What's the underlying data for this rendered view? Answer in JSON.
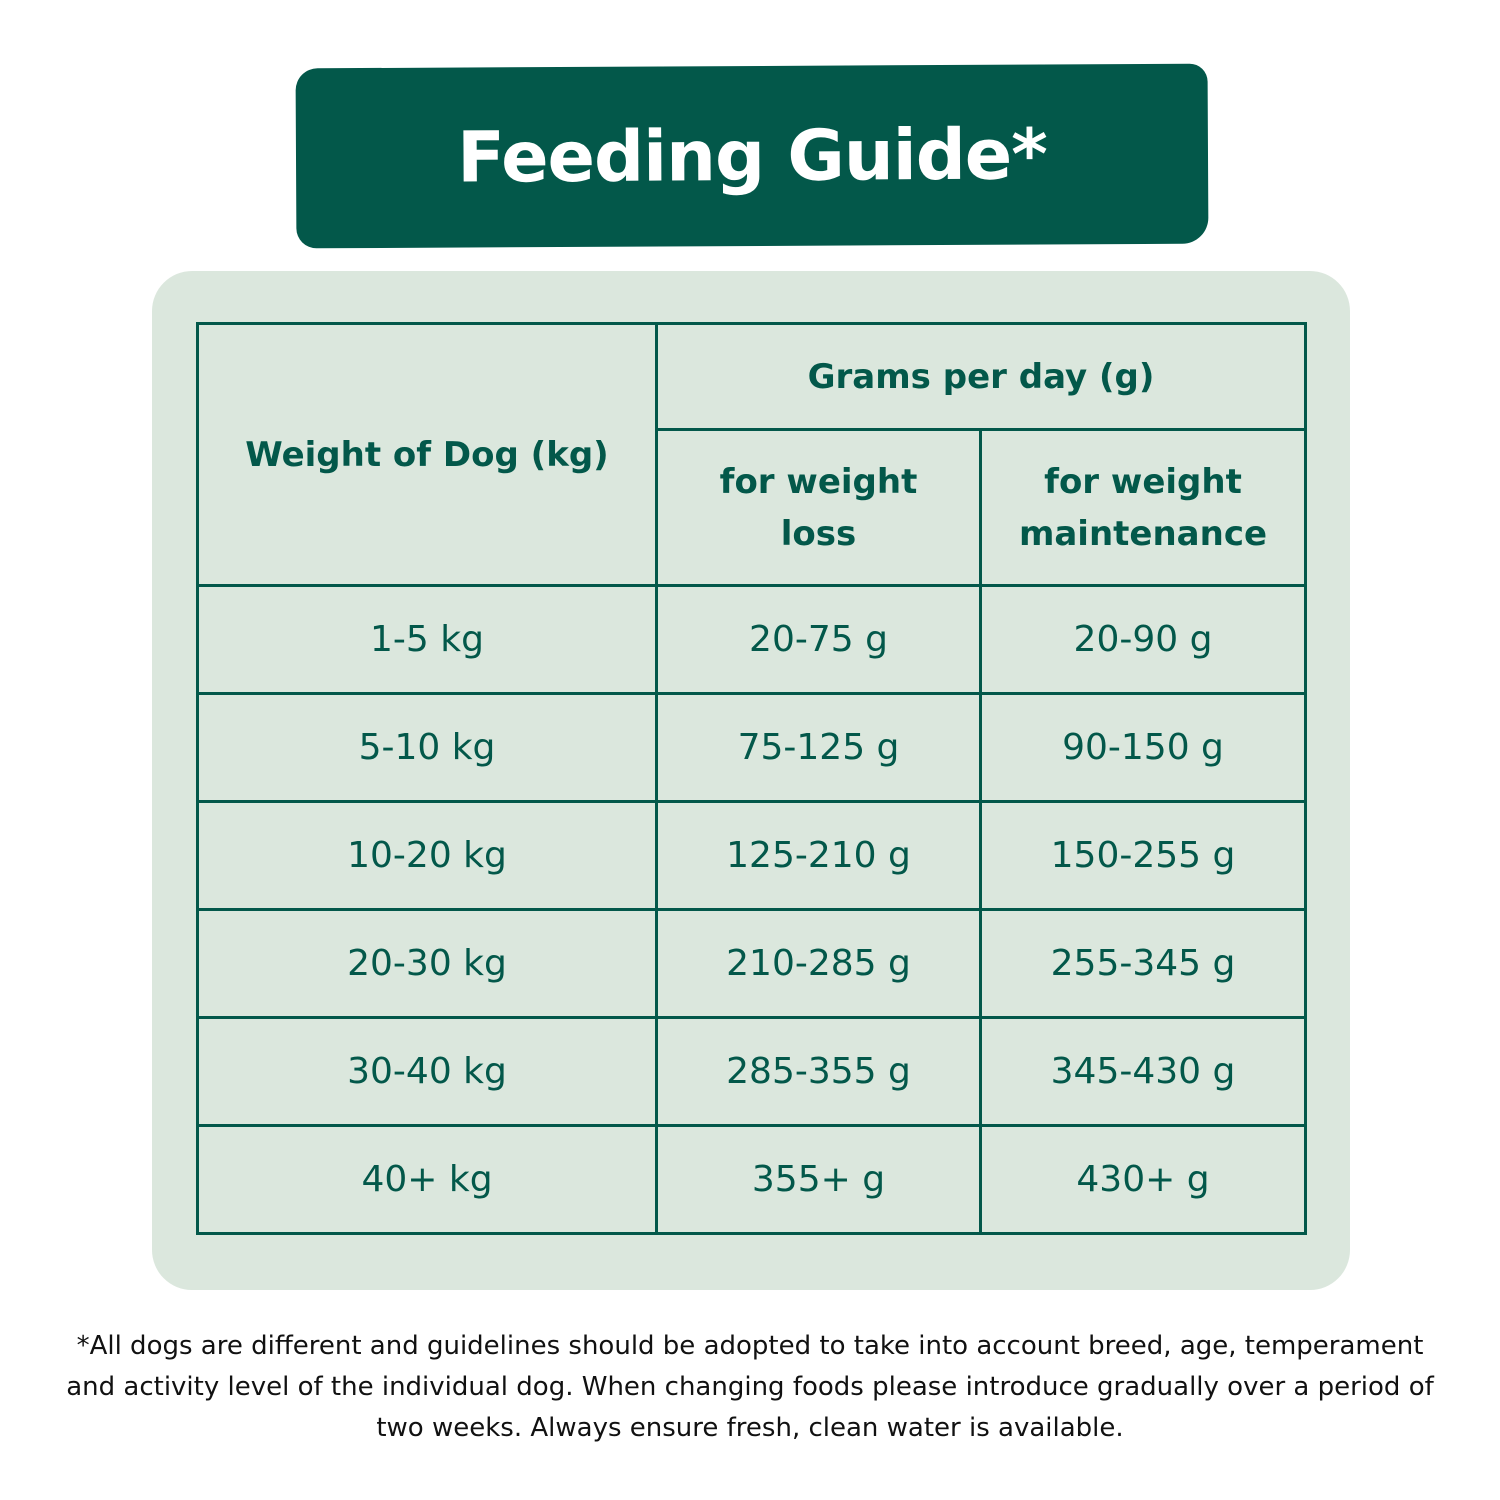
{
  "title": "Feeding Guide*",
  "colors": {
    "primary": "#03584A",
    "panel": "#DBE7DD"
  },
  "table": {
    "headers": {
      "weight": "Weight of Dog (kg)",
      "grams_per_day": "Grams per day (g)",
      "loss": "for weight loss",
      "maintenance": "for weight maintenance"
    },
    "rows": [
      {
        "weight": "1-5 kg",
        "loss": "20-75 g",
        "maintenance": "20-90 g"
      },
      {
        "weight": "5-10 kg",
        "loss": "75-125 g",
        "maintenance": "90-150 g"
      },
      {
        "weight": "10-20 kg",
        "loss": "125-210 g",
        "maintenance": "150-255 g"
      },
      {
        "weight": "20-30 kg",
        "loss": "210-285 g",
        "maintenance": "255-345 g"
      },
      {
        "weight": "30-40 kg",
        "loss": "285-355 g",
        "maintenance": "345-430 g"
      },
      {
        "weight": "40+ kg",
        "loss": "355+ g",
        "maintenance": "430+ g"
      }
    ]
  },
  "footnote": "*All dogs are different and guidelines should be adopted to take into account breed, age, temperament and activity level of the individual dog. When changing foods please introduce gradually over a period of two weeks. Always ensure fresh, clean water is available."
}
